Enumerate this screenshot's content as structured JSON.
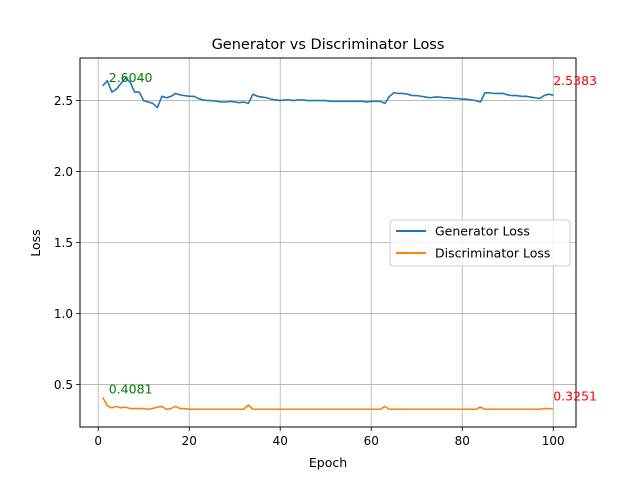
{
  "chart_data": {
    "type": "line",
    "title": "Generator vs Discriminator Loss",
    "xlabel": "Epoch",
    "ylabel": "Loss",
    "xlim": [
      -4,
      105
    ],
    "ylim": [
      0.2,
      2.8
    ],
    "xticks": [
      0,
      20,
      40,
      60,
      80,
      100
    ],
    "yticks": [
      0.5,
      1.0,
      1.5,
      2.0,
      2.5
    ],
    "grid": true,
    "legend_position": "center-right",
    "series": [
      {
        "name": "Generator Loss",
        "color": "#1f77b4",
        "x": [
          1,
          2,
          3,
          4,
          5,
          6,
          7,
          8,
          9,
          10,
          11,
          12,
          13,
          14,
          15,
          16,
          17,
          18,
          19,
          20,
          21,
          22,
          23,
          24,
          25,
          26,
          27,
          28,
          29,
          30,
          31,
          32,
          33,
          34,
          35,
          36,
          37,
          38,
          39,
          40,
          41,
          42,
          43,
          44,
          45,
          46,
          47,
          48,
          49,
          50,
          51,
          52,
          53,
          54,
          55,
          56,
          57,
          58,
          59,
          60,
          61,
          62,
          63,
          64,
          65,
          66,
          67,
          68,
          69,
          70,
          71,
          72,
          73,
          74,
          75,
          76,
          77,
          78,
          79,
          80,
          81,
          82,
          83,
          84,
          85,
          86,
          87,
          88,
          89,
          90,
          91,
          92,
          93,
          94,
          95,
          96,
          97,
          98,
          99,
          100
        ],
        "values": [
          2.604,
          2.64,
          2.56,
          2.58,
          2.62,
          2.66,
          2.63,
          2.56,
          2.56,
          2.5,
          2.49,
          2.48,
          2.45,
          2.53,
          2.52,
          2.53,
          2.55,
          2.54,
          2.535,
          2.53,
          2.53,
          2.515,
          2.505,
          2.5,
          2.5,
          2.495,
          2.49,
          2.49,
          2.495,
          2.49,
          2.485,
          2.49,
          2.48,
          2.545,
          2.53,
          2.525,
          2.52,
          2.51,
          2.505,
          2.5,
          2.505,
          2.505,
          2.5,
          2.505,
          2.505,
          2.5,
          2.5,
          2.5,
          2.5,
          2.5,
          2.495,
          2.495,
          2.495,
          2.495,
          2.495,
          2.495,
          2.495,
          2.495,
          2.49,
          2.495,
          2.495,
          2.495,
          2.48,
          2.53,
          2.555,
          2.55,
          2.55,
          2.545,
          2.535,
          2.535,
          2.53,
          2.525,
          2.52,
          2.525,
          2.525,
          2.52,
          2.52,
          2.515,
          2.515,
          2.51,
          2.51,
          2.505,
          2.5,
          2.49,
          2.555,
          2.555,
          2.55,
          2.55,
          2.55,
          2.54,
          2.535,
          2.535,
          2.53,
          2.53,
          2.525,
          2.52,
          2.515,
          2.535,
          2.545,
          2.538
        ]
      },
      {
        "name": "Discriminator Loss",
        "color": "#ff7f0e",
        "x": [
          1,
          2,
          3,
          4,
          5,
          6,
          7,
          8,
          9,
          10,
          11,
          12,
          13,
          14,
          15,
          16,
          17,
          18,
          19,
          20,
          21,
          22,
          23,
          24,
          25,
          26,
          27,
          28,
          29,
          30,
          31,
          32,
          33,
          34,
          35,
          36,
          37,
          38,
          39,
          40,
          41,
          42,
          43,
          44,
          45,
          46,
          47,
          48,
          49,
          50,
          51,
          52,
          53,
          54,
          55,
          56,
          57,
          58,
          59,
          60,
          61,
          62,
          63,
          64,
          65,
          66,
          67,
          68,
          69,
          70,
          71,
          72,
          73,
          74,
          75,
          76,
          77,
          78,
          79,
          80,
          81,
          82,
          83,
          84,
          85,
          86,
          87,
          88,
          89,
          90,
          91,
          92,
          93,
          94,
          95,
          96,
          97,
          98,
          99,
          100
        ],
        "values": [
          0.408,
          0.35,
          0.335,
          0.345,
          0.335,
          0.34,
          0.33,
          0.33,
          0.33,
          0.33,
          0.325,
          0.33,
          0.34,
          0.345,
          0.325,
          0.33,
          0.345,
          0.33,
          0.33,
          0.325,
          0.325,
          0.325,
          0.325,
          0.325,
          0.325,
          0.325,
          0.325,
          0.325,
          0.325,
          0.325,
          0.325,
          0.325,
          0.355,
          0.325,
          0.325,
          0.325,
          0.325,
          0.325,
          0.325,
          0.325,
          0.325,
          0.325,
          0.325,
          0.325,
          0.325,
          0.325,
          0.325,
          0.325,
          0.325,
          0.325,
          0.325,
          0.325,
          0.325,
          0.325,
          0.325,
          0.325,
          0.325,
          0.325,
          0.325,
          0.325,
          0.325,
          0.325,
          0.345,
          0.325,
          0.325,
          0.325,
          0.325,
          0.325,
          0.325,
          0.325,
          0.325,
          0.325,
          0.325,
          0.325,
          0.325,
          0.325,
          0.325,
          0.325,
          0.325,
          0.325,
          0.325,
          0.325,
          0.325,
          0.34,
          0.325,
          0.325,
          0.325,
          0.325,
          0.325,
          0.325,
          0.325,
          0.325,
          0.325,
          0.325,
          0.325,
          0.325,
          0.325,
          0.33,
          0.33,
          0.325
        ]
      }
    ],
    "annotations": [
      {
        "text": "2.6040",
        "x": 1,
        "y": 2.604,
        "color": "#008000",
        "anchor": "start",
        "dx": 6,
        "dy": -4
      },
      {
        "text": "2.5383",
        "x": 100,
        "y": 2.538,
        "color": "#ff0000",
        "anchor": "start",
        "dx": 0,
        "dy": -10
      },
      {
        "text": "0.4081",
        "x": 1,
        "y": 0.408,
        "color": "#008000",
        "anchor": "start",
        "dx": 6,
        "dy": -4
      },
      {
        "text": "0.3251",
        "x": 100,
        "y": 0.325,
        "color": "#ff0000",
        "anchor": "start",
        "dx": 0,
        "dy": -9
      }
    ]
  }
}
